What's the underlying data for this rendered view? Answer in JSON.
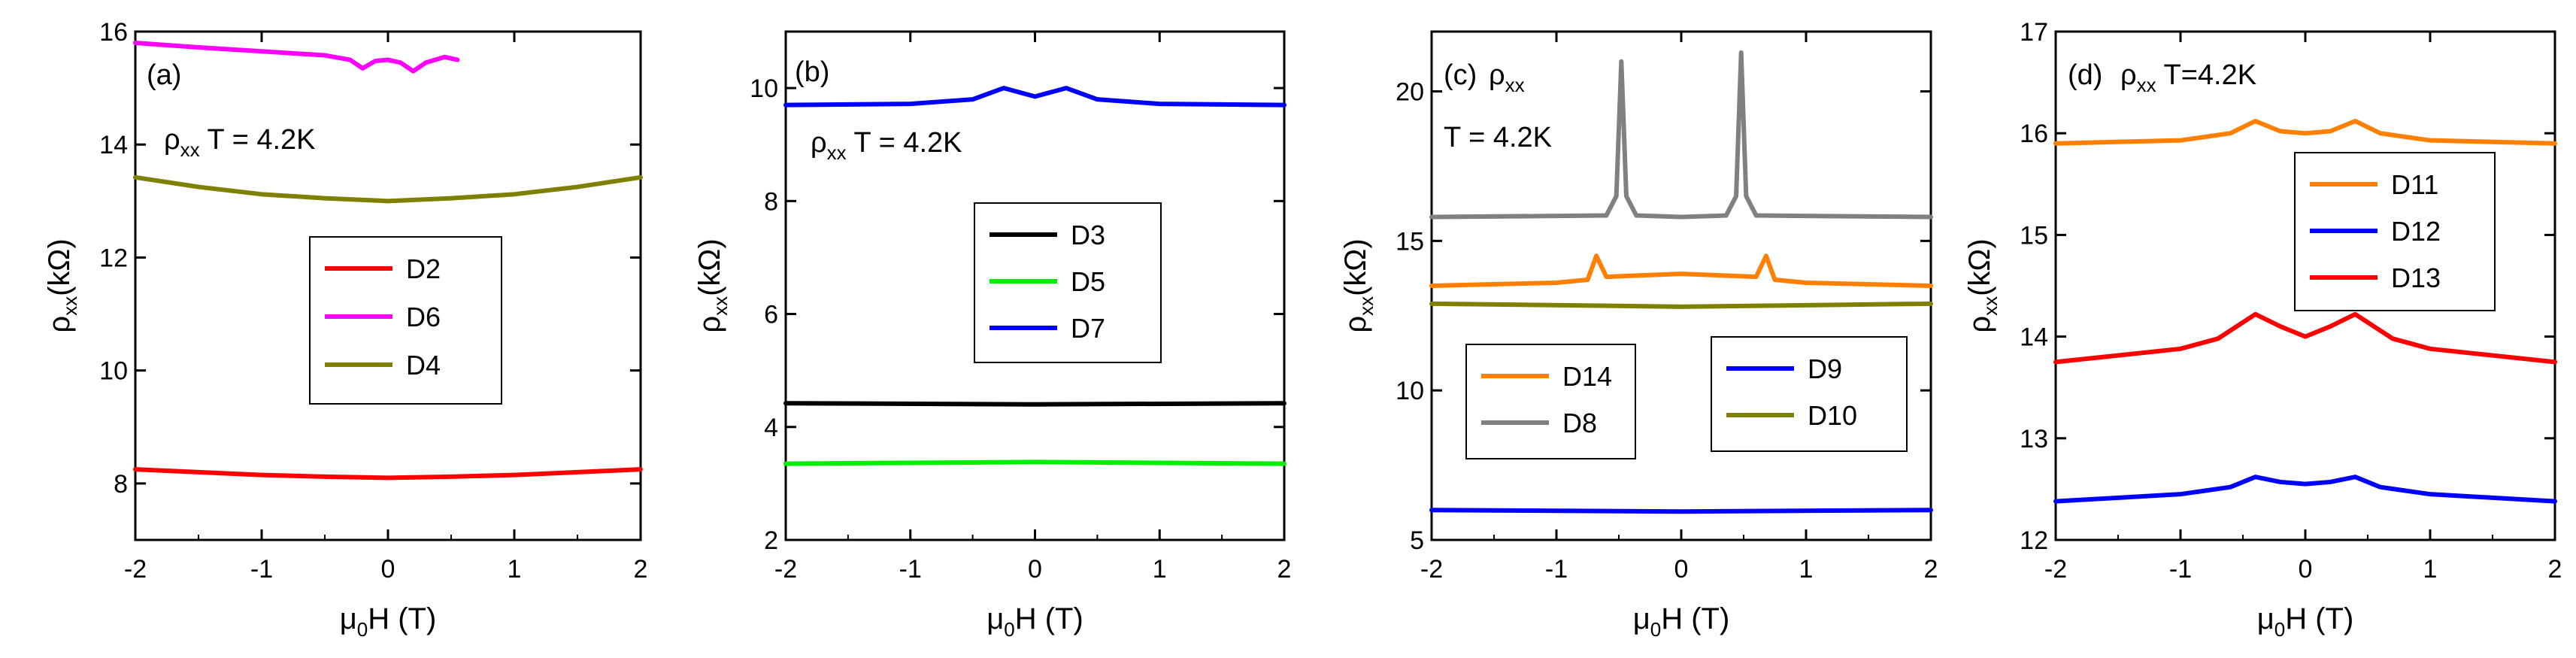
{
  "chart_data": [
    {
      "id": "a",
      "type": "line",
      "panel_label": "(a)",
      "annotation": {
        "symbol": "ρ",
        "sub": "xx",
        "text": " T = 4.2K"
      },
      "xlabel": {
        "main": "μ",
        "sub": "0",
        "rest": "H (T)"
      },
      "ylabel": {
        "main": "ρ",
        "sub": "xx",
        "rest": "(kΩ)"
      },
      "xlim": [
        -2,
        2
      ],
      "ylim": [
        7,
        16
      ],
      "xticks": [
        -2,
        -1,
        0,
        1,
        2
      ],
      "yticks": [
        8,
        10,
        12,
        14,
        16
      ],
      "legend": [
        "D2",
        "D6",
        "D4"
      ],
      "series": [
        {
          "name": "D2",
          "color": "#ff0000",
          "x": [
            -2,
            -1.5,
            -1,
            -0.5,
            0,
            0.5,
            1,
            1.5,
            2
          ],
          "y": [
            8.25,
            8.2,
            8.15,
            8.12,
            8.1,
            8.12,
            8.15,
            8.2,
            8.25
          ]
        },
        {
          "name": "D6",
          "color": "#ff00ff",
          "x": [
            -2,
            -1.5,
            -1,
            -0.5,
            -0.3,
            -0.2,
            -0.1,
            0,
            0.1,
            0.2,
            0.3,
            0.45,
            0.55
          ],
          "y": [
            15.8,
            15.72,
            15.65,
            15.58,
            15.5,
            15.35,
            15.48,
            15.5,
            15.45,
            15.3,
            15.45,
            15.55,
            15.5
          ]
        },
        {
          "name": "D4",
          "color": "#808000",
          "x": [
            -2,
            -1.5,
            -1,
            -0.5,
            0,
            0.5,
            1,
            1.5,
            2
          ],
          "y": [
            13.42,
            13.25,
            13.12,
            13.05,
            13.0,
            13.05,
            13.12,
            13.25,
            13.42
          ]
        }
      ]
    },
    {
      "id": "b",
      "type": "line",
      "panel_label": "(b)",
      "annotation": {
        "symbol": "ρ",
        "sub": "xx",
        "text": " T = 4.2K"
      },
      "xlabel": {
        "main": "μ",
        "sub": "0",
        "rest": "H (T)"
      },
      "ylabel": {
        "main": "ρ",
        "sub": "xx",
        "rest": "(kΩ)"
      },
      "xlim": [
        -2,
        2
      ],
      "ylim": [
        2,
        11
      ],
      "xticks": [
        -2,
        -1,
        0,
        1,
        2
      ],
      "yticks": [
        2,
        4,
        6,
        8,
        10
      ],
      "legend": [
        "D3",
        "D5",
        "D7"
      ],
      "series": [
        {
          "name": "D3",
          "color": "#000000",
          "x": [
            -2,
            0,
            2
          ],
          "y": [
            4.42,
            4.4,
            4.42
          ]
        },
        {
          "name": "D5",
          "color": "#00ee00",
          "x": [
            -2,
            0,
            2
          ],
          "y": [
            3.35,
            3.38,
            3.35
          ]
        },
        {
          "name": "D7",
          "color": "#0000ff",
          "x": [
            -2,
            -1,
            -0.5,
            -0.25,
            0,
            0.25,
            0.5,
            1,
            2
          ],
          "y": [
            9.7,
            9.72,
            9.8,
            10.0,
            9.85,
            10.0,
            9.8,
            9.72,
            9.7
          ]
        }
      ]
    },
    {
      "id": "c",
      "type": "line",
      "panel_label": "(c)",
      "annotation": {
        "symbol": "ρ",
        "sub": "xx",
        "text": ""
      },
      "annotation2": "T = 4.2K",
      "xlabel": {
        "main": "μ",
        "sub": "0",
        "rest": "H (T)"
      },
      "ylabel": {
        "main": "ρ",
        "sub": "xx",
        "rest": "(kΩ)"
      },
      "xlim": [
        -2,
        2
      ],
      "ylim": [
        5,
        22
      ],
      "xticks": [
        -2,
        -1,
        0,
        1,
        2
      ],
      "yticks": [
        5,
        10,
        15,
        20
      ],
      "legend": [
        "D14",
        "D8",
        "D9",
        "D10"
      ],
      "series": [
        {
          "name": "D14",
          "color": "#ff8000",
          "x": [
            -2,
            -1,
            -0.75,
            -0.68,
            -0.6,
            0,
            0.6,
            0.68,
            0.75,
            1,
            2
          ],
          "y": [
            13.5,
            13.6,
            13.7,
            14.5,
            13.8,
            13.9,
            13.8,
            14.5,
            13.7,
            13.6,
            13.5
          ]
        },
        {
          "name": "D8",
          "color": "#808080",
          "x": [
            -2,
            -0.6,
            -0.52,
            -0.48,
            -0.44,
            -0.36,
            0,
            0.36,
            0.44,
            0.48,
            0.52,
            0.6,
            2
          ],
          "y": [
            15.8,
            15.85,
            16.5,
            21.0,
            16.5,
            15.85,
            15.8,
            15.85,
            16.5,
            21.3,
            16.5,
            15.85,
            15.8
          ]
        },
        {
          "name": "D9",
          "color": "#0000ff",
          "x": [
            -2,
            0,
            2
          ],
          "y": [
            6.0,
            5.95,
            6.0
          ]
        },
        {
          "name": "D10",
          "color": "#808000",
          "x": [
            -2,
            0,
            2
          ],
          "y": [
            12.9,
            12.8,
            12.9
          ]
        }
      ]
    },
    {
      "id": "d",
      "type": "line",
      "panel_label": "(d)",
      "annotation": {
        "symbol": "ρ",
        "sub": "xx",
        "text": "  T=4.2K"
      },
      "xlabel": {
        "main": "μ",
        "sub": "0",
        "rest": "H (T)"
      },
      "ylabel": {
        "main": "ρ",
        "sub": "xx",
        "rest": "(kΩ)"
      },
      "xlim": [
        -2,
        2
      ],
      "ylim": [
        12,
        17
      ],
      "xticks": [
        -2,
        -1,
        0,
        1,
        2
      ],
      "yticks": [
        12,
        13,
        14,
        15,
        16,
        17
      ],
      "legend": [
        "D11",
        "D12",
        "D13"
      ],
      "series": [
        {
          "name": "D11",
          "color": "#ff8000",
          "x": [
            -2,
            -1,
            -0.6,
            -0.4,
            -0.2,
            0,
            0.2,
            0.4,
            0.6,
            1,
            2
          ],
          "y": [
            15.9,
            15.93,
            16.0,
            16.12,
            16.02,
            16.0,
            16.02,
            16.12,
            16.0,
            15.93,
            15.9
          ]
        },
        {
          "name": "D12",
          "color": "#0000ff",
          "x": [
            -2,
            -1,
            -0.6,
            -0.4,
            -0.2,
            0,
            0.2,
            0.4,
            0.6,
            1,
            2
          ],
          "y": [
            12.38,
            12.45,
            12.52,
            12.62,
            12.57,
            12.55,
            12.57,
            12.62,
            12.52,
            12.45,
            12.38
          ]
        },
        {
          "name": "D13",
          "color": "#ff0000",
          "x": [
            -2,
            -1,
            -0.7,
            -0.4,
            -0.2,
            0,
            0.2,
            0.4,
            0.7,
            1,
            2
          ],
          "y": [
            13.75,
            13.88,
            13.98,
            14.22,
            14.1,
            14.0,
            14.1,
            14.22,
            13.98,
            13.88,
            13.75
          ]
        }
      ]
    }
  ]
}
